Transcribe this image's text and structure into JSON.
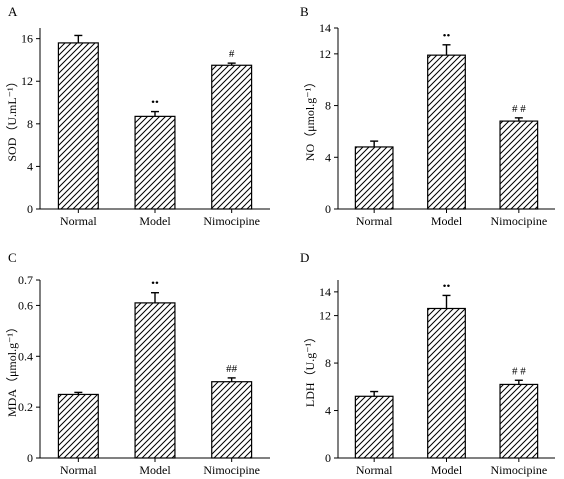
{
  "figure": {
    "panels": [
      "A",
      "B",
      "C",
      "D"
    ]
  },
  "chart_data": [
    {
      "panel": "A",
      "type": "bar",
      "ylabel": "SOD（U.mL⁻¹）",
      "categories": [
        "Normal",
        "Model",
        "Nimocipine"
      ],
      "values": [
        15.6,
        8.7,
        13.5
      ],
      "errors": [
        0.7,
        0.45,
        0.2
      ],
      "annotations": [
        "",
        "••",
        "#"
      ],
      "ylim": [
        0,
        17
      ],
      "yticks": [
        0,
        4,
        8,
        12,
        16
      ],
      "ytick_labels": [
        "0",
        "4",
        "8",
        "12",
        "16"
      ],
      "pattern": "diagonal-hatch",
      "grid": false
    },
    {
      "panel": "B",
      "type": "bar",
      "ylabel": "NO（μmol.g⁻¹）",
      "categories": [
        "Normal",
        "Model",
        "Nimocipine"
      ],
      "values": [
        4.8,
        11.9,
        6.8
      ],
      "errors": [
        0.45,
        0.8,
        0.25
      ],
      "annotations": [
        "",
        "••",
        "# #"
      ],
      "ylim": [
        0,
        14
      ],
      "yticks": [
        0,
        4,
        8,
        12,
        14
      ],
      "ytick_labels": [
        "0",
        "4",
        "8",
        "12",
        "14"
      ],
      "pattern": "diagonal-hatch",
      "grid": false
    },
    {
      "panel": "C",
      "type": "bar",
      "ylabel": "MDA（μmol.g⁻¹）",
      "categories": [
        "Normal",
        "Model",
        "Nimocipine"
      ],
      "values": [
        0.25,
        0.61,
        0.3
      ],
      "errors": [
        0.008,
        0.04,
        0.015
      ],
      "annotations": [
        "",
        "••",
        "##"
      ],
      "ylim": [
        0,
        0.7
      ],
      "yticks": [
        0,
        0.2,
        0.4,
        0.6,
        0.7
      ],
      "ytick_labels": [
        "0",
        "0.2",
        "0.4",
        "0.6",
        "0.7"
      ],
      "pattern": "diagonal-hatch",
      "grid": false
    },
    {
      "panel": "D",
      "type": "bar",
      "ylabel": "LDH（U.g⁻¹）",
      "categories": [
        "Normal",
        "Model",
        "Nimocipine"
      ],
      "values": [
        5.2,
        12.6,
        6.2
      ],
      "errors": [
        0.4,
        1.1,
        0.35
      ],
      "annotations": [
        "",
        "••",
        "# #"
      ],
      "ylim": [
        0,
        15
      ],
      "yticks": [
        0,
        4,
        8,
        12,
        14
      ],
      "ytick_labels": [
        "0",
        "4",
        "8",
        "12",
        "14"
      ],
      "pattern": "diagonal-hatch",
      "grid": false
    }
  ]
}
